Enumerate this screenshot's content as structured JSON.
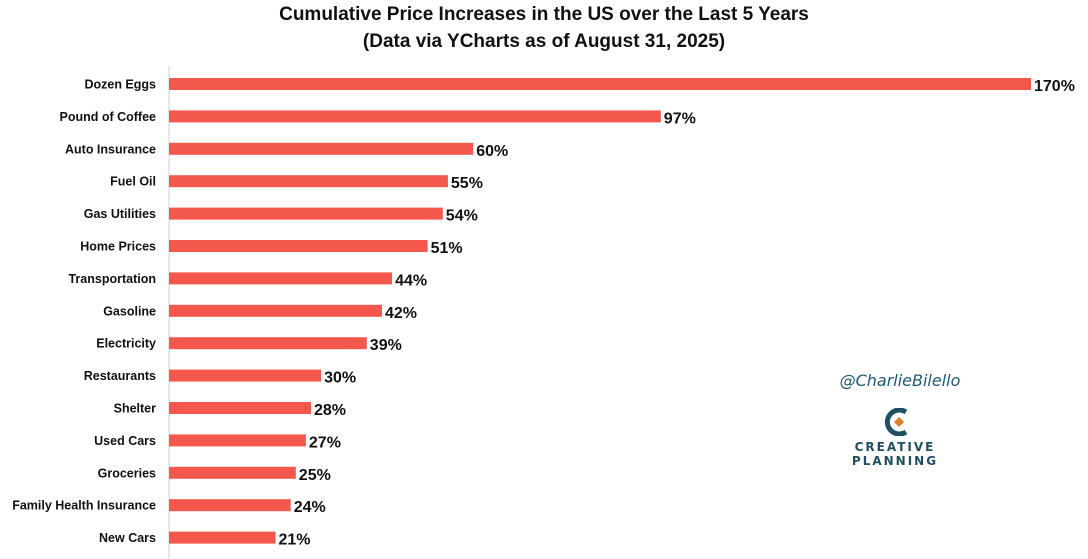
{
  "chart_data": {
    "type": "bar",
    "orientation": "horizontal",
    "title": "Cumulative Price Increases in the US over the Last 5 Years",
    "subtitle": "(Data via YCharts as of August 31, 2025)",
    "categories": [
      "Dozen Eggs",
      "Pound of Coffee",
      "Auto Insurance",
      "Fuel Oil",
      "Gas Utilities",
      "Home Prices",
      "Transportation",
      "Gasoline",
      "Electricity",
      "Restaurants",
      "Shelter",
      "Used Cars",
      "Groceries",
      "Family Health Insurance",
      "New Cars"
    ],
    "values": [
      170,
      97,
      60,
      55,
      54,
      51,
      44,
      42,
      39,
      30,
      28,
      27,
      25,
      24,
      21
    ],
    "labels": [
      "170%",
      "97%",
      "60%",
      "55%",
      "54%",
      "51%",
      "44%",
      "42%",
      "39%",
      "30%",
      "28%",
      "27%",
      "25%",
      "24%",
      "21%"
    ],
    "xlim": [
      0,
      170
    ],
    "xlabel": "",
    "ylabel": "",
    "grid": false,
    "bar_color": "#f4574b"
  },
  "attribution": {
    "handle": "@CharlieBilello",
    "logo_word_1": "CREATIVE",
    "logo_word_2": "PLANNING",
    "logo_color": "#1e4f63",
    "logo_accent": "#d9822b"
  }
}
